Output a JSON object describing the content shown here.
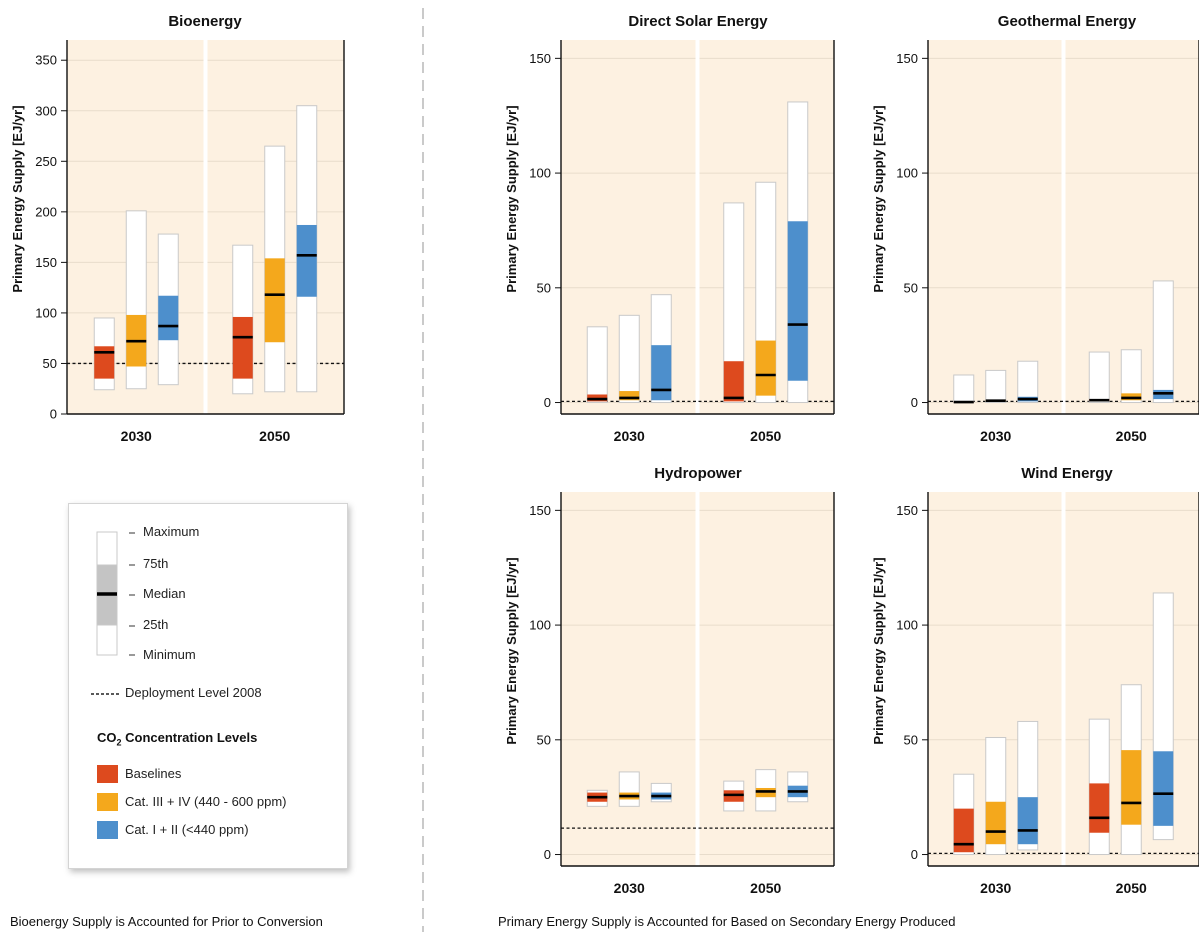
{
  "colors": {
    "panel_bg": "#fdf1e1",
    "baselines": "#dd4a1e",
    "cat_iii_iv": "#f4a81c",
    "cat_i_ii": "#4d8fcc",
    "legend_gray": "#c4c4c4"
  },
  "ylabel": "Primary Energy Supply [EJ/yr]",
  "years": [
    "2030",
    "2050"
  ],
  "legend": {
    "maximum": "Maximum",
    "p75": "75th",
    "median": "Median",
    "p25": "25th",
    "minimum": "Minimum",
    "deployment": "Deployment Level 2008",
    "co2_title_prefix": "CO",
    "co2_title_sub": "2",
    "co2_title_suffix": " Concentration Levels",
    "baselines": "Baselines",
    "cat_iii_iv": "Cat. III + IV (440 - 600 ppm)",
    "cat_i_ii": "Cat. I + II (<440 ppm)"
  },
  "footnotes": {
    "left": "Bioenergy Supply is Accounted for Prior to Conversion",
    "right": "Primary Energy Supply is Accounted for Based on Secondary Energy Produced"
  },
  "chart_data": [
    {
      "type": "box",
      "title": "Bioenergy",
      "ylabel": "Primary Energy Supply [EJ/yr]",
      "ylim": [
        0,
        370
      ],
      "yticks": [
        0,
        50,
        100,
        150,
        200,
        250,
        300,
        350
      ],
      "deployment_2008": 50,
      "series_names": [
        "Baselines",
        "Cat. III + IV (440 - 600 ppm)",
        "Cat. I + II (<440 ppm)"
      ],
      "categories": [
        "2030",
        "2050"
      ],
      "boxes": [
        [
          {
            "min": 24,
            "q1": 35,
            "median": 61,
            "q3": 67,
            "max": 95
          },
          {
            "min": 25,
            "q1": 47,
            "median": 72,
            "q3": 98,
            "max": 201
          },
          {
            "min": 29,
            "q1": 73,
            "median": 87,
            "q3": 117,
            "max": 178
          }
        ],
        [
          {
            "min": 20,
            "q1": 35,
            "median": 76,
            "q3": 96,
            "max": 167
          },
          {
            "min": 22,
            "q1": 71,
            "median": 118,
            "q3": 154,
            "max": 265
          },
          {
            "min": 22,
            "q1": 116,
            "median": 157,
            "q3": 187,
            "max": 305
          }
        ]
      ]
    },
    {
      "type": "box",
      "title": "Direct Solar Energy",
      "ylabel": "Primary Energy Supply [EJ/yr]",
      "ylim": [
        -5,
        158
      ],
      "yticks": [
        0,
        50,
        100,
        150
      ],
      "deployment_2008": 0.5,
      "series_names": [
        "Baselines",
        "Cat. III + IV (440 - 600 ppm)",
        "Cat. I + II (<440 ppm)"
      ],
      "categories": [
        "2030",
        "2050"
      ],
      "boxes": [
        [
          {
            "min": 0,
            "q1": 0.5,
            "median": 1.5,
            "q3": 3.5,
            "max": 33
          },
          {
            "min": 0,
            "q1": 1,
            "median": 2,
            "q3": 5,
            "max": 38
          },
          {
            "min": 0,
            "q1": 1,
            "median": 5.5,
            "q3": 25,
            "max": 47
          }
        ],
        [
          {
            "min": 0,
            "q1": 0.5,
            "median": 2,
            "q3": 18,
            "max": 87
          },
          {
            "min": 0,
            "q1": 3,
            "median": 12,
            "q3": 27,
            "max": 96
          },
          {
            "min": 0,
            "q1": 9.5,
            "median": 34,
            "q3": 79,
            "max": 131
          }
        ]
      ]
    },
    {
      "type": "box",
      "title": "Geothermal Energy",
      "ylabel": "Primary Energy Supply [EJ/yr]",
      "ylim": [
        -5,
        158
      ],
      "yticks": [
        0,
        50,
        100,
        150
      ],
      "deployment_2008": 0.5,
      "series_names": [
        "Baselines",
        "Cat. III + IV (440 - 600 ppm)",
        "Cat. I + II (<440 ppm)"
      ],
      "categories": [
        "2030",
        "2050"
      ],
      "boxes": [
        [
          {
            "min": 0,
            "q1": 0,
            "median": 0.2,
            "q3": 0.5,
            "max": 12
          },
          {
            "min": 0,
            "q1": 0.5,
            "median": 0.8,
            "q3": 1.2,
            "max": 14
          },
          {
            "min": 0,
            "q1": 0.5,
            "median": 1.5,
            "q3": 2.5,
            "max": 18
          }
        ],
        [
          {
            "min": 0,
            "q1": 0.5,
            "median": 1,
            "q3": 1.5,
            "max": 22
          },
          {
            "min": 0,
            "q1": 1,
            "median": 2,
            "q3": 4,
            "max": 23
          },
          {
            "min": 0,
            "q1": 1.5,
            "median": 4,
            "q3": 5.5,
            "max": 53
          }
        ]
      ]
    },
    {
      "type": "box",
      "title": "Hydropower",
      "ylabel": "Primary Energy Supply [EJ/yr]",
      "ylim": [
        -5,
        158
      ],
      "yticks": [
        0,
        50,
        100,
        150
      ],
      "deployment_2008": 11.5,
      "series_names": [
        "Baselines",
        "Cat. III + IV (440 - 600 ppm)",
        "Cat. I + II (<440 ppm)"
      ],
      "categories": [
        "2030",
        "2050"
      ],
      "boxes": [
        [
          {
            "min": 21,
            "q1": 23,
            "median": 25,
            "q3": 27,
            "max": 28
          },
          {
            "min": 21,
            "q1": 24,
            "median": 25.5,
            "q3": 27,
            "max": 36
          },
          {
            "min": 23,
            "q1": 24,
            "median": 25.5,
            "q3": 27,
            "max": 31
          }
        ],
        [
          {
            "min": 19,
            "q1": 23,
            "median": 26,
            "q3": 28,
            "max": 32
          },
          {
            "min": 19,
            "q1": 25,
            "median": 27.5,
            "q3": 29,
            "max": 37
          },
          {
            "min": 23,
            "q1": 25,
            "median": 27.5,
            "q3": 30,
            "max": 36
          }
        ]
      ]
    },
    {
      "type": "box",
      "title": "Wind Energy",
      "ylabel": "Primary Energy Supply [EJ/yr]",
      "ylim": [
        -5,
        158
      ],
      "yticks": [
        0,
        50,
        100,
        150
      ],
      "deployment_2008": 0.5,
      "series_names": [
        "Baselines",
        "Cat. III + IV (440 - 600 ppm)",
        "Cat. I + II (<440 ppm)"
      ],
      "categories": [
        "2030",
        "2050"
      ],
      "boxes": [
        [
          {
            "min": 0,
            "q1": 1,
            "median": 4.5,
            "q3": 20,
            "max": 35
          },
          {
            "min": 0,
            "q1": 4.5,
            "median": 10,
            "q3": 23,
            "max": 51
          },
          {
            "min": 2,
            "q1": 4.5,
            "median": 10.5,
            "q3": 25,
            "max": 58
          }
        ],
        [
          {
            "min": 0,
            "q1": 9.5,
            "median": 16,
            "q3": 31,
            "max": 59
          },
          {
            "min": 0,
            "q1": 13,
            "median": 22.5,
            "q3": 45.5,
            "max": 74
          },
          {
            "min": 6.5,
            "q1": 12.5,
            "median": 26.5,
            "q3": 45,
            "max": 114
          }
        ]
      ]
    }
  ]
}
